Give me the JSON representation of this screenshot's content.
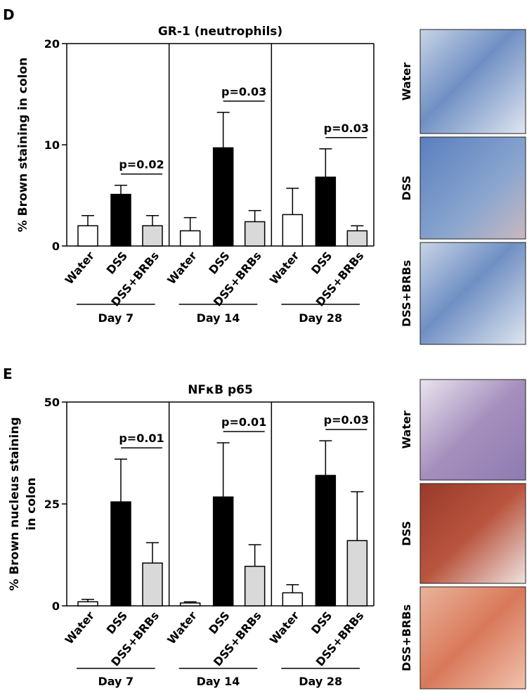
{
  "chart_data": [
    {
      "type": "bar",
      "panel": "D",
      "title": "GR-1 (neutrophils)",
      "ylabel": [
        "% Brown staining in colon"
      ],
      "categories": [
        "Water",
        "DSS",
        "DSS+BRBs"
      ],
      "colors": [
        "#ffffff",
        "#000000",
        "#d9d9d9"
      ],
      "groups": [
        {
          "name": "Day 7",
          "values": [
            2.0,
            5.1,
            2.0
          ],
          "errors": [
            1.0,
            0.9,
            1.0
          ],
          "annotation": "p=0.02"
        },
        {
          "name": "Day 14",
          "values": [
            1.5,
            9.7,
            2.4
          ],
          "errors": [
            1.3,
            3.5,
            1.1
          ],
          "annotation": "p=0.03"
        },
        {
          "name": "Day 28",
          "values": [
            3.1,
            6.8,
            1.5
          ],
          "errors": [
            2.6,
            2.8,
            0.5
          ],
          "annotation": "p=0.03"
        }
      ],
      "ylim": [
        0,
        20
      ],
      "yticks": [
        0,
        10,
        20
      ],
      "image_labels": [
        "Water",
        "DSS",
        "DSS+BRBs"
      ]
    },
    {
      "type": "bar",
      "panel": "E",
      "title": "NFκB p65",
      "ylabel": [
        "% Brown nucleus staining",
        "in colon"
      ],
      "categories": [
        "Water",
        "DSS",
        "DSS+BRBs"
      ],
      "colors": [
        "#ffffff",
        "#000000",
        "#d9d9d9"
      ],
      "groups": [
        {
          "name": "Day 7",
          "values": [
            1.0,
            25.5,
            10.5
          ],
          "errors": [
            0.6,
            10.5,
            5.0
          ],
          "annotation": "p=0.01"
        },
        {
          "name": "Day 14",
          "values": [
            0.7,
            26.7,
            9.7
          ],
          "errors": [
            0.3,
            13.3,
            5.3
          ],
          "annotation": "p=0.01"
        },
        {
          "name": "Day 28",
          "values": [
            3.2,
            32.0,
            16.0
          ],
          "errors": [
            2.0,
            8.5,
            12.0
          ],
          "annotation": "p=0.03"
        }
      ],
      "ylim": [
        0,
        50
      ],
      "yticks": [
        0,
        25,
        50
      ],
      "image_labels": [
        "Water",
        "DSS",
        "DSS+BRBs"
      ]
    }
  ]
}
